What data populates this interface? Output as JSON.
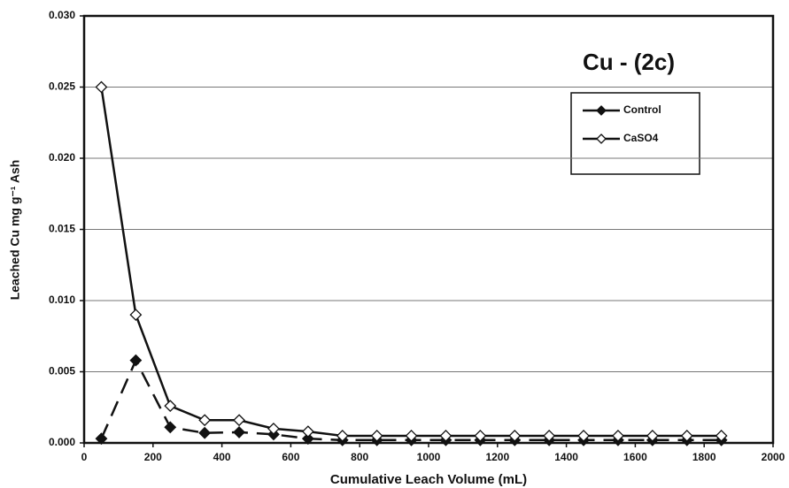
{
  "chart_data": {
    "type": "line",
    "title": "Cu - (2c)",
    "x_label": "Cumulative Leach Volume (mL)",
    "y_label": "Leached Cu mg g⁻¹ Ash",
    "x": [
      50,
      150,
      250,
      350,
      450,
      550,
      650,
      750,
      850,
      950,
      1050,
      1150,
      1250,
      1350,
      1450,
      1550,
      1650,
      1750,
      1850
    ],
    "series": [
      {
        "name": "Control",
        "color": "#111111",
        "values": [
          0.0003,
          0.0058,
          0.0011,
          0.0007,
          0.00075,
          0.0006,
          0.0003,
          0.0002,
          0.0002,
          0.0002,
          0.0002,
          0.0002,
          0.0002,
          0.0002,
          0.0002,
          0.0002,
          0.0002,
          0.0002,
          0.0002
        ]
      },
      {
        "name": "CaSO4",
        "color": "#111111",
        "values": [
          0.025,
          0.009,
          0.0026,
          0.0016,
          0.0016,
          0.001,
          0.0008,
          0.0005,
          0.0005,
          0.0005,
          0.0005,
          0.0005,
          0.0005,
          0.0005,
          0.0005,
          0.0005,
          0.0005,
          0.0005,
          0.0005
        ]
      }
    ],
    "xlim": [
      0,
      2000
    ],
    "xticks": [
      0,
      200,
      400,
      600,
      800,
      1000,
      1200,
      1400,
      1600,
      1800,
      2000
    ],
    "ylim": [
      0,
      0.03
    ],
    "yticks": [
      {
        "value": 0,
        "label": "0.000"
      },
      {
        "value": 0.005,
        "label": "0.005"
      },
      {
        "value": 0.01,
        "label": "0.010"
      },
      {
        "value": 0.015,
        "label": "0.015"
      },
      {
        "value": 0.02,
        "label": "0.020"
      },
      {
        "value": 0.025,
        "label": "0.025"
      },
      {
        "value": 0.03,
        "label": "0.030"
      }
    ],
    "grid": true
  }
}
